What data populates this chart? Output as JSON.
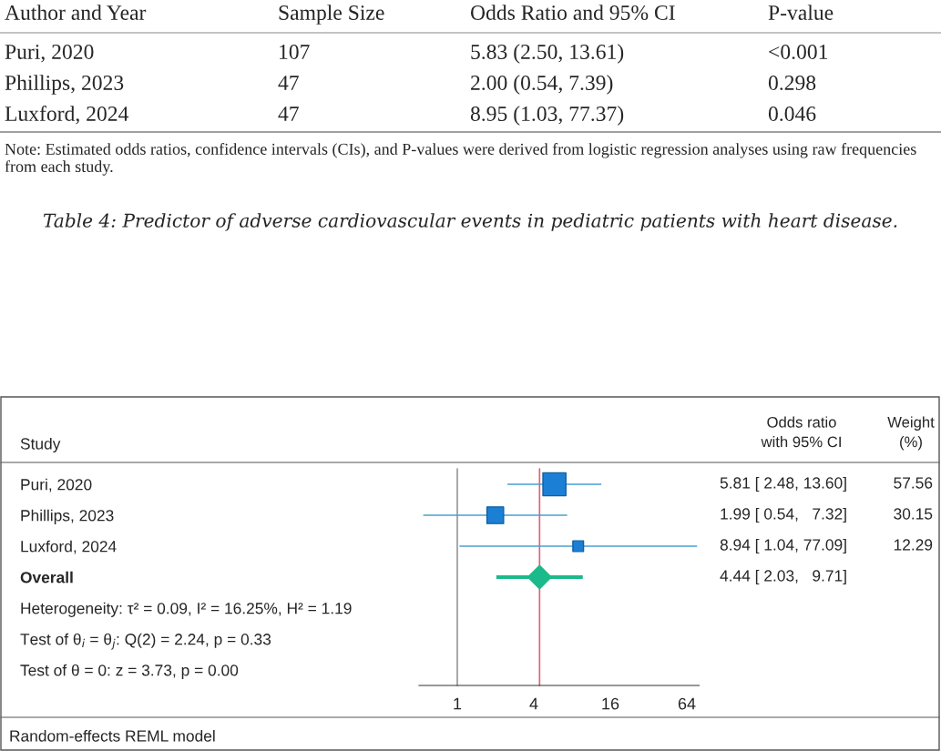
{
  "chart_data": [
    {
      "type": "other",
      "title": "Table 4: Predictor of adverse cardiovascular events in pediatric patients with heart disease.",
      "categories": [
        "Author and Year",
        "Sample Size",
        "Odds Ratio and 95% CI",
        "P-value"
      ],
      "cells": [
        [
          "Puri, 2020",
          "107",
          "5.83 (2.50, 13.61)",
          "<0.001"
        ],
        [
          "Phillips, 2023",
          "47",
          "2.00 (0.54, 7.39)",
          "0.298"
        ],
        [
          "Luxford, 2024",
          "47",
          "8.95 (1.03, 77.37)",
          "0.046"
        ]
      ],
      "annotations": [
        "Note: Estimated odds ratios, confidence intervals (CIs), and P-values were derived from logistic regression analyses using raw frequencies from each study."
      ]
    },
    {
      "type": "scatter",
      "orientation": "horizontal",
      "log": "x",
      "categories": [
        "Puri, 2020",
        "Phillips, 2023",
        "Luxford, 2024",
        "Overall",
        "Heterogeneity: τ² = 0.09, I² = 16.25%, H² = 1.19",
        "Test of θ$_{i}$ = θ$_{j}$: Q(2) = 2.24, p = 0.33",
        "Test of θ = 0: z = 3.73, p = 0.00"
      ],
      "series": [
        {
          "marker": "square",
          "color": "#1c7fd6",
          "values": [
            5.81,
            1.99,
            8.94,
            null,
            null,
            null,
            null
          ],
          "errors": [
            [
              2.48,
              13.6
            ],
            [
              0.54,
              7.32
            ],
            [
              1.04,
              77.09
            ],
            null,
            null,
            null,
            null
          ],
          "sizes": [
            1,
            0.524,
            0.214,
            null,
            null,
            null,
            null
          ]
        },
        {
          "marker": "diamond",
          "color": "#1cb98a",
          "values": [
            null,
            null,
            null,
            4.44,
            null,
            null,
            null
          ],
          "errors": [
            null,
            null,
            null,
            [
              2.03,
              9.71
            ],
            null,
            null,
            null
          ]
        }
      ],
      "xlim": [
        0.5,
        80
      ],
      "xticks": [
        1,
        4,
        16,
        64
      ],
      "ref_lines": [
        {
          "axis": "x",
          "value": 1,
          "color": "#999999"
        },
        {
          "axis": "x",
          "value": 4.44,
          "color": "#e0607a"
        }
      ],
      "annotations": [
        "Study",
        "Odds ratio\nwith 95% CI",
        "Weight\n(%)",
        "5.81 [ 2.48, 13.60]",
        "1.99 [ 0.54,   7.32]",
        "8.94 [ 1.04, 77.09]",
        "4.44 [ 2.03,   9.71]",
        "57.56",
        "30.15",
        "12.29",
        "Random-effects REML model"
      ]
    }
  ]
}
